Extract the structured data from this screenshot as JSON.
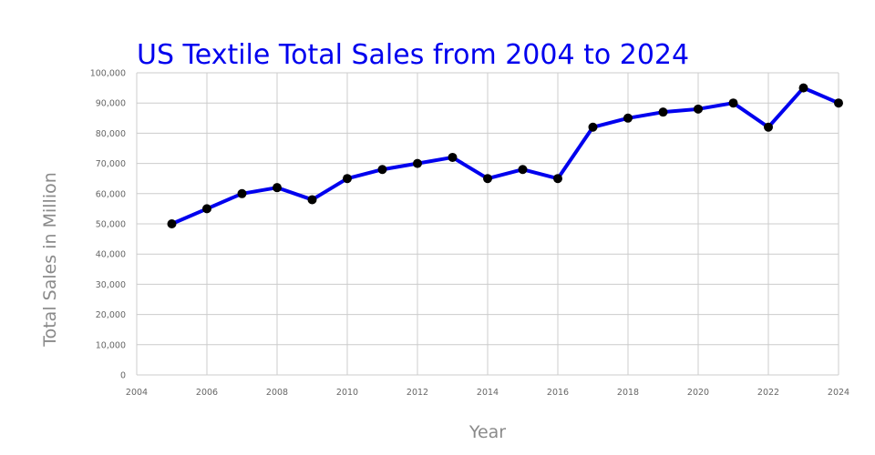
{
  "chart_data": {
    "type": "line",
    "title": "US Textile Total Sales from 2004 to 2024",
    "xlabel": "Year",
    "ylabel": "Total Sales in Million",
    "xlim": [
      2004,
      2024
    ],
    "ylim": [
      0,
      100000
    ],
    "x_ticks": [
      2004,
      2006,
      2008,
      2010,
      2012,
      2014,
      2016,
      2018,
      2020,
      2022,
      2024
    ],
    "y_ticks": [
      0,
      10000,
      20000,
      30000,
      40000,
      50000,
      60000,
      70000,
      80000,
      90000,
      100000
    ],
    "y_tick_labels": [
      "0",
      "10,000",
      "20,000",
      "30,000",
      "40,000",
      "50,000",
      "60,000",
      "70,000",
      "80,000",
      "90,000",
      "100,000"
    ],
    "grid": true,
    "legend": "none",
    "series": [
      {
        "color": "#0000ee",
        "marker_color": "#000000",
        "x": [
          2005,
          2006,
          2007,
          2008,
          2009,
          2010,
          2011,
          2012,
          2013,
          2014,
          2015,
          2016,
          2017,
          2018,
          2019,
          2020,
          2021,
          2022,
          2023,
          2024
        ],
        "y": [
          50000,
          55000,
          60000,
          62000,
          58000,
          65000,
          68000,
          70000,
          72000,
          65000,
          68000,
          65000,
          82000,
          85000,
          87000,
          88000,
          90000,
          82000,
          95000,
          90000
        ]
      }
    ]
  }
}
